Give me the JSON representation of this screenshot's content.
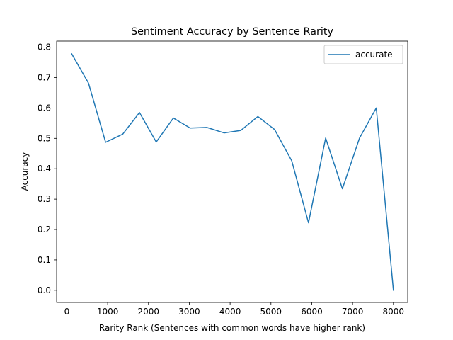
{
  "chart_data": {
    "type": "line",
    "title": "Sentiment Accuracy by Sentence Rarity",
    "xlabel": "Rarity Rank (Sentences with common words have higher rank)",
    "ylabel": "Accuracy",
    "xlim": [
      -250,
      8350
    ],
    "ylim": [
      -0.04,
      0.82
    ],
    "xticks": [
      "0",
      "1000",
      "2000",
      "3000",
      "4000",
      "5000",
      "6000",
      "7000",
      "8000"
    ],
    "yticks": [
      "0.0",
      "0.1",
      "0.2",
      "0.3",
      "0.4",
      "0.5",
      "0.6",
      "0.7",
      "0.8"
    ],
    "grid": false,
    "legend_position": "upper right",
    "colors": {
      "line": "#1f77b4",
      "axes": "#000000",
      "legend_border": "#cccccc"
    },
    "series": [
      {
        "name": "accurate",
        "x": [
          120,
          530,
          950,
          1370,
          1780,
          2190,
          2610,
          3020,
          3430,
          3850,
          4260,
          4680,
          5090,
          5510,
          5920,
          6340,
          6750,
          7170,
          7580,
          8000
        ],
        "y": [
          0.778,
          0.682,
          0.487,
          0.514,
          0.585,
          0.488,
          0.567,
          0.534,
          0.536,
          0.518,
          0.526,
          0.572,
          0.529,
          0.426,
          0.222,
          0.501,
          0.334,
          0.501,
          0.6,
          0.0
        ]
      }
    ]
  }
}
